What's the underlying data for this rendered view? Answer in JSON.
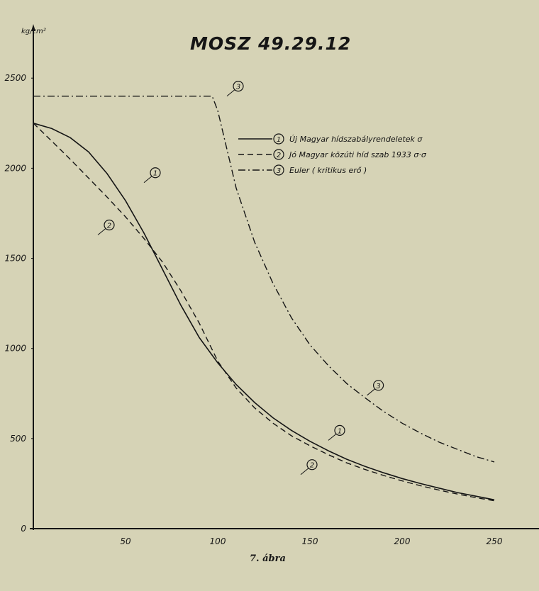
{
  "chart_data": {
    "type": "line",
    "title": "MOSZ 49.29.12",
    "ylabel": "kg/cm²",
    "xlabel": "",
    "caption": "7. ábra",
    "xlim": [
      0,
      250
    ],
    "ylim": [
      0,
      2600
    ],
    "xticks": [
      50,
      100,
      150,
      200,
      250
    ],
    "yticks": [
      0,
      500,
      1000,
      1500,
      2000,
      2500
    ],
    "grid": false,
    "legend_position": "top-right",
    "legend": [
      {
        "marker": "1",
        "text": "Új Magyar hídszabályrendeletek σ",
        "style": "solid"
      },
      {
        "marker": "2",
        "text": "Jó Magyar közúti híd szab 1933 σ·σ",
        "style": "dashed"
      },
      {
        "marker": "3",
        "text": "Euler ( kritikus erő )",
        "style": "dash-dot"
      }
    ],
    "series": [
      {
        "marker": "1",
        "style": "solid",
        "x": [
          0,
          10,
          20,
          30,
          40,
          50,
          60,
          70,
          80,
          90,
          100,
          110,
          120,
          130,
          140,
          150,
          160,
          170,
          180,
          190,
          200,
          210,
          220,
          230,
          240,
          250
        ],
        "y": [
          2250,
          2220,
          2170,
          2090,
          1970,
          1820,
          1640,
          1440,
          1240,
          1060,
          920,
          800,
          700,
          615,
          545,
          485,
          432,
          385,
          345,
          310,
          278,
          250,
          225,
          200,
          180,
          160
        ],
        "labels": [
          {
            "x": 60,
            "y": 1920
          },
          {
            "x": 160,
            "y": 490
          }
        ]
      },
      {
        "marker": "2",
        "style": "dashed",
        "x": [
          0,
          10,
          20,
          30,
          40,
          50,
          60,
          70,
          80,
          90,
          100,
          110,
          120,
          130,
          140,
          150,
          160,
          170,
          180,
          190,
          200,
          210,
          220,
          230,
          240,
          250
        ],
        "y": [
          2250,
          2150,
          2050,
          1945,
          1840,
          1730,
          1610,
          1480,
          1320,
          1140,
          930,
          780,
          670,
          585,
          515,
          460,
          410,
          365,
          328,
          295,
          265,
          238,
          214,
          192,
          172,
          155
        ],
        "labels": [
          {
            "x": 35,
            "y": 1630
          },
          {
            "x": 145,
            "y": 300
          }
        ]
      },
      {
        "marker": "3",
        "style": "dash-dot",
        "x": [
          0,
          10,
          20,
          30,
          40,
          50,
          60,
          70,
          80,
          90,
          97,
          100,
          110,
          120,
          130,
          140,
          150,
          160,
          170,
          180,
          190,
          200,
          210,
          220,
          230,
          240,
          250
        ],
        "y": [
          2400,
          2400,
          2400,
          2400,
          2400,
          2400,
          2400,
          2400,
          2400,
          2400,
          2400,
          2320,
          1890,
          1590,
          1360,
          1170,
          1020,
          905,
          805,
          725,
          650,
          585,
          530,
          480,
          440,
          400,
          370
        ],
        "labels": [
          {
            "x": 105,
            "y": 2400
          },
          {
            "x": 181,
            "y": 740
          }
        ]
      }
    ]
  }
}
